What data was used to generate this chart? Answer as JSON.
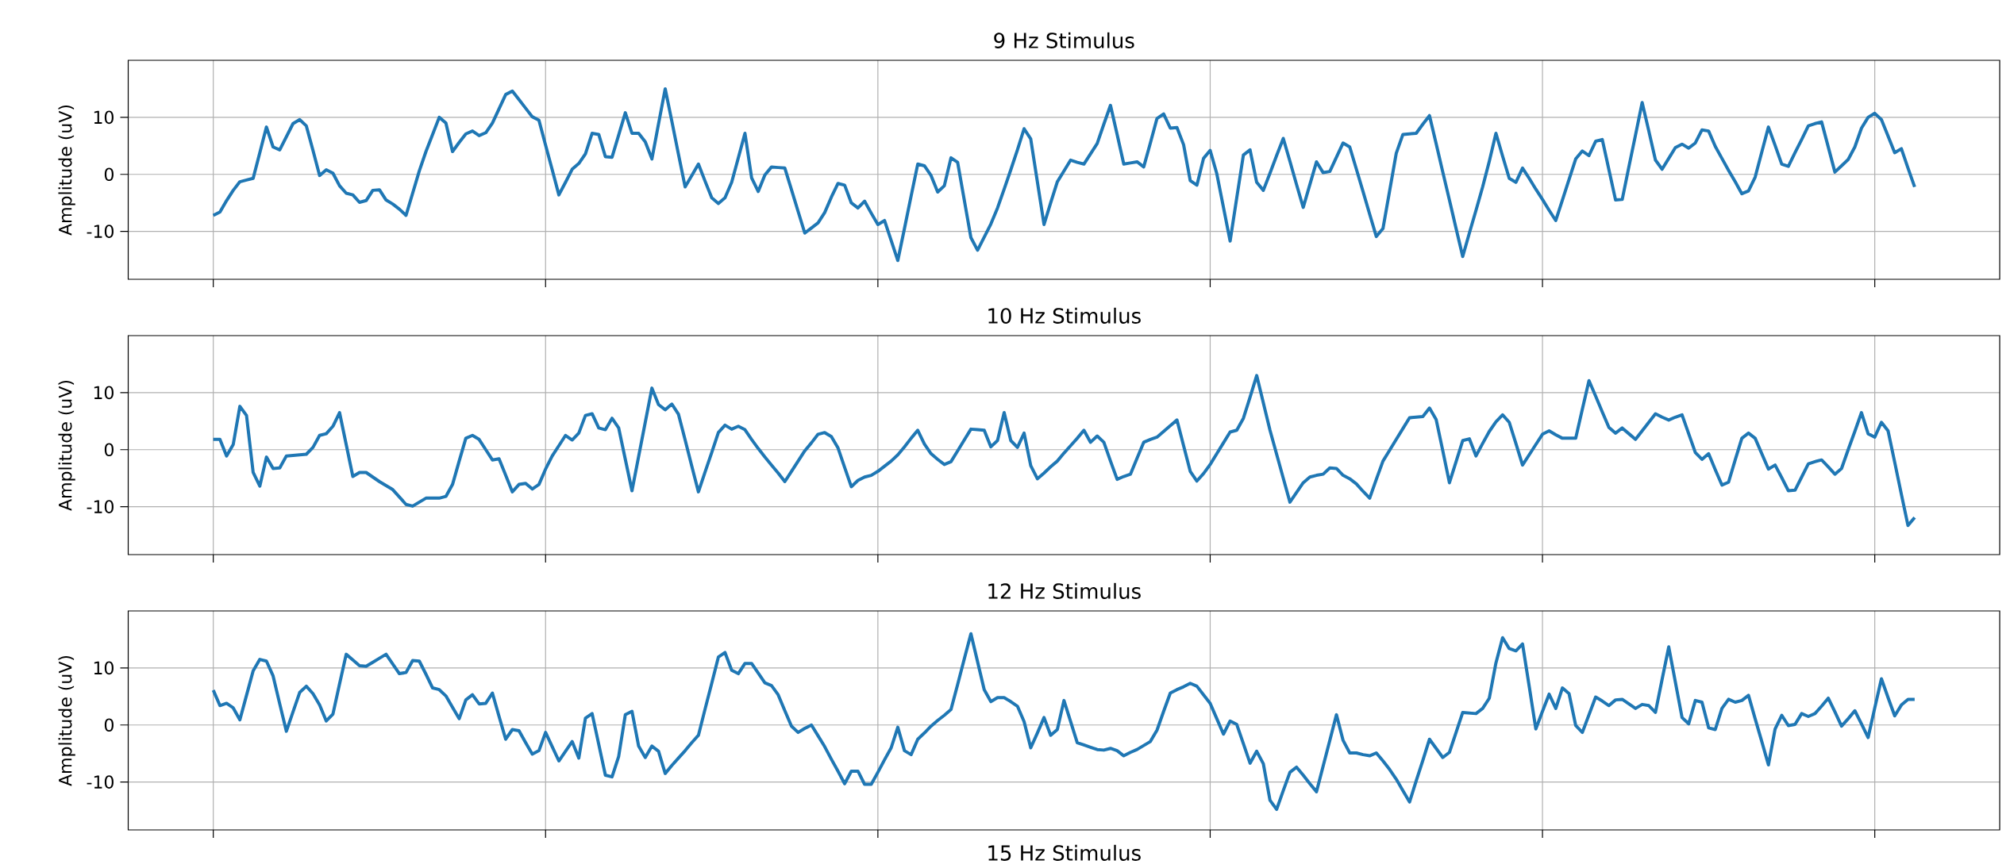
{
  "chart_data": [
    {
      "type": "line",
      "title": "9 Hz Stimulus",
      "ylabel": "Amplitude (uV)",
      "color": "#1f77b4",
      "grid": true,
      "tick_labels": "y",
      "ylim": [
        -18.4,
        20.0
      ],
      "yticks": [
        -10,
        0,
        10
      ],
      "categories": [
        null,
        null,
        null,
        null,
        null,
        null,
        null,
        null,
        null,
        null,
        null,
        null,
        null,
        null,
        null,
        null,
        null,
        null,
        null,
        null,
        null,
        null,
        null,
        null,
        null,
        null,
        null,
        null,
        null,
        null,
        null,
        null,
        null,
        null,
        null,
        null,
        null,
        null,
        null,
        null,
        null,
        null,
        null,
        null,
        null,
        null,
        null,
        null,
        null,
        null,
        null,
        null,
        null,
        null,
        null,
        null,
        null,
        null,
        null,
        null,
        null,
        null,
        null,
        null,
        null,
        null,
        null,
        null,
        null,
        null,
        null,
        null,
        null,
        null,
        null,
        null,
        null,
        null,
        null,
        null,
        null,
        null,
        null,
        null,
        null,
        null,
        null,
        null,
        null,
        null,
        null,
        null,
        null,
        null,
        null,
        null,
        null,
        null,
        null,
        null,
        null,
        null,
        null,
        null,
        null,
        null,
        null,
        null,
        null,
        null,
        null,
        null,
        null,
        null,
        null,
        null,
        null,
        null,
        null,
        null,
        null,
        null,
        null,
        null,
        null,
        null,
        null,
        null,
        null,
        null,
        null,
        null,
        null,
        null,
        null,
        null,
        null,
        null,
        null,
        null,
        null,
        null,
        null,
        null,
        null,
        null,
        null,
        null,
        null,
        null,
        null,
        null,
        null,
        null,
        null,
        null,
        null,
        null,
        null,
        null,
        null,
        null,
        null,
        null,
        null,
        null,
        null,
        null,
        null,
        null,
        null,
        null,
        null,
        null,
        null,
        null,
        null,
        null,
        null,
        null,
        null,
        null,
        null,
        null,
        null,
        null,
        null,
        null,
        null,
        null,
        null,
        null,
        null,
        null,
        null,
        null,
        null,
        null,
        null,
        null,
        null,
        null,
        null,
        null,
        null,
        null,
        null,
        null,
        null,
        null,
        null,
        null,
        null,
        null,
        null,
        null,
        null,
        null,
        null,
        null,
        null,
        null,
        null,
        null,
        null,
        null,
        null,
        null,
        null,
        null,
        null,
        null,
        null,
        null,
        null,
        null,
        null,
        null,
        null,
        null,
        null,
        null,
        null,
        null,
        null,
        null,
        null,
        null,
        null,
        null,
        null,
        null,
        null,
        null,
        null,
        null,
        null
      ],
      "values": [
        -7.2,
        -6.6,
        -4.6,
        -2.8,
        -1.3,
        -1.0,
        -0.7,
        3.8,
        8.3,
        4.8,
        4.3,
        6.6,
        8.9,
        9.6,
        8.5,
        4.2,
        -0.2,
        0.8,
        0.2,
        -2.0,
        -3.3,
        -3.6,
        -4.9,
        -4.6,
        -2.8,
        -2.7,
        -4.5,
        -5.2,
        -6.1,
        -7.2,
        -3.3,
        0.6,
        4.0,
        7.0,
        10.0,
        9.0,
        4.0,
        5.6,
        7.1,
        7.6,
        6.8,
        7.3,
        9.0,
        11.5,
        14.0,
        14.6,
        13.1,
        11.6,
        10.1,
        9.5,
        5.1,
        0.8,
        -3.6,
        -1.4,
        0.9,
        1.9,
        3.6,
        7.2,
        7.0,
        3.1,
        3.0,
        6.9,
        10.8,
        7.2,
        7.2,
        5.7,
        2.7,
        8.9,
        15.0,
        9.3,
        3.5,
        -2.2,
        -0.2,
        1.8,
        -1.2,
        -4.1,
        -5.1,
        -4.1,
        -1.4,
        2.9,
        7.2,
        -0.6,
        -3.0,
        -0.1,
        1.3,
        1.2,
        1.1,
        -2.7,
        -6.5,
        -10.3,
        -9.4,
        -8.5,
        -6.7,
        -4.0,
        -1.6,
        -1.9,
        -5.0,
        -5.9,
        -4.7,
        -6.8,
        -8.8,
        -8.1,
        -11.6,
        -15.1,
        -9.5,
        -3.8,
        1.8,
        1.5,
        -0.2,
        -3.1,
        -2.0,
        2.9,
        2.1,
        -4.5,
        -11.1,
        -13.3,
        -11.0,
        -8.7,
        -5.9,
        -2.6,
        0.8,
        4.3,
        8.0,
        6.2,
        -1.3,
        -8.8,
        -5.0,
        -1.3,
        0.6,
        2.5,
        2.1,
        1.8,
        3.6,
        5.4,
        8.8,
        12.1,
        7.0,
        1.8,
        2.0,
        2.2,
        1.3,
        5.5,
        9.8,
        10.6,
        8.1,
        8.2,
        5.2,
        -1.1,
        -1.9,
        2.8,
        4.2,
        0.1,
        -5.8,
        -11.7,
        -4.1,
        3.4,
        4.3,
        -1.4,
        -2.8,
        0.2,
        3.3,
        6.3,
        2.3,
        -1.8,
        -5.8,
        -1.8,
        2.2,
        0.3,
        0.5,
        3.0,
        5.5,
        4.8,
        0.9,
        -3.0,
        -7.0,
        -10.9,
        -9.5,
        -2.9,
        3.7,
        7.0,
        7.1,
        7.2,
        8.8,
        10.3,
        5.4,
        0.4,
        -4.5,
        -9.5,
        -14.4,
        -10.3,
        -6.3,
        -2.2,
        2.3,
        7.2,
        3.2,
        -0.7,
        -1.4,
        1.1,
        -0.7,
        -2.6,
        -4.4,
        -6.3,
        -8.1,
        -4.5,
        -0.9,
        2.7,
        4.1,
        3.3,
        5.8,
        6.1,
        0.8,
        -4.5,
        -4.4,
        1.3,
        6.9,
        12.6,
        7.6,
        2.5,
        0.9,
        2.8,
        4.7,
        5.3,
        4.6,
        5.5,
        7.8,
        7.6,
        4.9,
        2.8,
        0.7,
        -1.3,
        -3.4,
        -2.9,
        -0.5,
        3.9,
        8.3,
        5.1,
        1.8,
        1.4,
        3.8,
        6.1,
        8.5,
        8.9,
        9.2,
        4.8,
        0.4,
        1.5,
        2.6,
        4.8,
        8.1,
        10.0,
        10.7,
        9.6,
        6.7,
        3.8,
        4.5,
        1.1,
        -2.2
      ]
    },
    {
      "type": "line",
      "title": "10 Hz Stimulus",
      "ylabel": "Amplitude (uV)",
      "color": "#1f77b4",
      "grid": true,
      "tick_labels": "y",
      "ylim": [
        -18.4,
        20.0
      ],
      "yticks": [
        -10,
        0,
        10
      ],
      "categories": [
        null,
        null,
        null,
        null,
        null,
        null,
        null,
        null,
        null,
        null,
        null,
        null,
        null,
        null,
        null,
        null,
        null,
        null,
        null,
        null,
        null,
        null,
        null,
        null,
        null,
        null,
        null,
        null,
        null,
        null,
        null,
        null,
        null,
        null,
        null,
        null,
        null,
        null,
        null,
        null,
        null,
        null,
        null,
        null,
        null,
        null,
        null,
        null,
        null,
        null,
        null,
        null,
        null,
        null,
        null,
        null,
        null,
        null,
        null,
        null,
        null,
        null,
        null,
        null,
        null,
        null,
        null,
        null,
        null,
        null,
        null,
        null,
        null,
        null,
        null,
        null,
        null,
        null,
        null,
        null,
        null,
        null,
        null,
        null,
        null,
        null,
        null,
        null,
        null,
        null,
        null,
        null,
        null,
        null,
        null,
        null,
        null,
        null,
        null,
        null,
        null,
        null,
        null,
        null,
        null,
        null,
        null,
        null,
        null,
        null,
        null,
        null,
        null,
        null,
        null,
        null,
        null,
        null,
        null,
        null,
        null,
        null,
        null,
        null,
        null,
        null,
        null,
        null,
        null,
        null,
        null,
        null,
        null,
        null,
        null,
        null,
        null,
        null,
        null,
        null,
        null,
        null,
        null,
        null,
        null,
        null,
        null,
        null,
        null,
        null,
        null,
        null,
        null,
        null,
        null,
        null,
        null,
        null,
        null,
        null,
        null,
        null,
        null,
        null,
        null,
        null,
        null,
        null,
        null,
        null,
        null,
        null,
        null,
        null,
        null,
        null,
        null,
        null,
        null,
        null,
        null,
        null,
        null,
        null,
        null,
        null,
        null,
        null,
        null,
        null,
        null,
        null,
        null,
        null,
        null,
        null,
        null,
        null,
        null,
        null,
        null,
        null,
        null,
        null,
        null,
        null,
        null,
        null,
        null,
        null,
        null,
        null,
        null,
        null,
        null,
        null,
        null,
        null,
        null,
        null,
        null,
        null,
        null,
        null,
        null,
        null,
        null,
        null,
        null,
        null,
        null,
        null,
        null,
        null,
        null,
        null,
        null,
        null,
        null,
        null,
        null,
        null,
        null,
        null,
        null,
        null,
        null,
        null,
        null,
        null,
        null,
        null,
        null,
        null,
        null,
        null,
        null
      ],
      "values": [
        1.8,
        1.8,
        -1.1,
        0.9,
        7.6,
        6.0,
        -4.0,
        -6.4,
        -1.3,
        -3.3,
        -3.2,
        -1.1,
        -1.0,
        -0.9,
        -0.8,
        0.4,
        2.5,
        2.8,
        4.1,
        6.5,
        0.9,
        -4.7,
        -4.0,
        -4.0,
        -4.8,
        -5.6,
        -6.3,
        -7.0,
        -8.3,
        -9.6,
        -9.9,
        -9.2,
        -8.5,
        -8.5,
        -8.5,
        -8.2,
        -6.1,
        -2.0,
        2.0,
        2.5,
        1.8,
        0.0,
        -1.8,
        -1.6,
        -4.5,
        -7.4,
        -6.1,
        -5.9,
        -6.9,
        -6.1,
        -3.4,
        -1.1,
        0.7,
        2.5,
        1.7,
        2.9,
        6.0,
        6.3,
        3.8,
        3.5,
        5.5,
        3.8,
        -1.7,
        -7.2,
        -1.2,
        4.8,
        10.8,
        7.9,
        7.0,
        8.0,
        6.2,
        1.7,
        -2.9,
        -7.4,
        -3.9,
        -0.5,
        3.0,
        4.3,
        3.6,
        4.1,
        3.5,
        1.8,
        0.2,
        -1.3,
        -2.7,
        -4.1,
        -5.6,
        -3.8,
        -2.0,
        -0.2,
        1.2,
        2.7,
        3.0,
        2.3,
        0.3,
        -3.1,
        -6.5,
        -5.4,
        -4.8,
        -4.5,
        -3.8,
        -2.9,
        -2.0,
        -0.9,
        0.5,
        2.0,
        3.4,
        1.0,
        -0.7,
        -1.7,
        -2.6,
        -2.1,
        -0.2,
        1.7,
        3.6,
        3.5,
        3.4,
        0.5,
        1.6,
        6.5,
        1.6,
        0.4,
        2.9,
        -2.8,
        -5.1,
        -4.1,
        -3.0,
        -2.0,
        -0.6,
        0.7,
        2.0,
        3.4,
        1.3,
        2.4,
        1.3,
        -2.0,
        -5.2,
        -4.7,
        -4.3,
        -1.5,
        1.3,
        1.8,
        2.2,
        3.2,
        4.2,
        5.2,
        0.7,
        -3.8,
        -5.5,
        -4.2,
        -2.6,
        -0.7,
        1.2,
        3.1,
        3.4,
        5.5,
        9.2,
        13.0,
        8.2,
        3.4,
        -0.8,
        -5.0,
        -9.2,
        -7.5,
        -5.8,
        -4.8,
        -4.5,
        -4.3,
        -3.2,
        -3.3,
        -4.5,
        -5.1,
        -6.0,
        -7.3,
        -8.5,
        -5.2,
        -2.0,
        -0.1,
        1.8,
        3.7,
        5.6,
        5.7,
        5.8,
        7.3,
        5.3,
        -0.2,
        -5.8,
        -2.1,
        1.6,
        1.9,
        -1.1,
        1.1,
        3.2,
        4.9,
        6.1,
        4.8,
        1.1,
        -2.7,
        -0.9,
        0.9,
        2.7,
        3.3,
        2.6,
        2.0,
        2.0,
        2.0,
        7.1,
        12.1,
        9.4,
        6.6,
        3.9,
        2.9,
        3.8,
        2.8,
        1.8,
        3.3,
        4.8,
        6.3,
        5.7,
        5.2,
        5.7,
        6.1,
        2.8,
        -0.5,
        -1.7,
        -0.7,
        -3.5,
        -6.2,
        -5.7,
        -1.8,
        2.0,
        2.9,
        2.0,
        -0.7,
        -3.4,
        -2.7,
        -4.9,
        -7.2,
        -7.1,
        -4.8,
        -2.5,
        -2.1,
        -1.8,
        -3.0,
        -4.3,
        -3.3,
        0.0,
        3.2,
        6.5,
        2.8,
        2.2,
        4.8,
        3.3,
        -2.2,
        -7.8,
        -13.3,
        -11.9
      ]
    },
    {
      "type": "line",
      "title": "12 Hz Stimulus",
      "ylabel": "Amplitude (uV)",
      "color": "#1f77b4",
      "grid": true,
      "tick_labels": "y",
      "ylim": [
        -18.4,
        20.0
      ],
      "yticks": [
        -10,
        0,
        10
      ],
      "categories": [
        null,
        null,
        null,
        null,
        null,
        null,
        null,
        null,
        null,
        null,
        null,
        null,
        null,
        null,
        null,
        null,
        null,
        null,
        null,
        null,
        null,
        null,
        null,
        null,
        null,
        null,
        null,
        null,
        null,
        null,
        null,
        null,
        null,
        null,
        null,
        null,
        null,
        null,
        null,
        null,
        null,
        null,
        null,
        null,
        null,
        null,
        null,
        null,
        null,
        null,
        null,
        null,
        null,
        null,
        null,
        null,
        null,
        null,
        null,
        null,
        null,
        null,
        null,
        null,
        null,
        null,
        null,
        null,
        null,
        null,
        null,
        null,
        null,
        null,
        null,
        null,
        null,
        null,
        null,
        null,
        null,
        null,
        null,
        null,
        null,
        null,
        null,
        null,
        null,
        null,
        null,
        null,
        null,
        null,
        null,
        null,
        null,
        null,
        null,
        null,
        null,
        null,
        null,
        null,
        null,
        null,
        null,
        null,
        null,
        null,
        null,
        null,
        null,
        null,
        null,
        null,
        null,
        null,
        null,
        null,
        null,
        null,
        null,
        null,
        null,
        null,
        null,
        null,
        null,
        null,
        null,
        null,
        null,
        null,
        null,
        null,
        null,
        null,
        null,
        null,
        null,
        null,
        null,
        null,
        null,
        null,
        null,
        null,
        null,
        null,
        null,
        null,
        null,
        null,
        null,
        null,
        null,
        null,
        null,
        null,
        null,
        null,
        null,
        null,
        null,
        null,
        null,
        null,
        null,
        null,
        null,
        null,
        null,
        null,
        null,
        null,
        null,
        null,
        null,
        null,
        null,
        null,
        null,
        null,
        null,
        null,
        null,
        null,
        null,
        null,
        null,
        null,
        null,
        null,
        null,
        null,
        null,
        null,
        null,
        null,
        null,
        null,
        null,
        null,
        null,
        null,
        null,
        null,
        null,
        null,
        null,
        null,
        null,
        null,
        null,
        null,
        null,
        null,
        null,
        null,
        null,
        null,
        null,
        null,
        null,
        null,
        null,
        null,
        null,
        null,
        null,
        null,
        null,
        null,
        null,
        null,
        null,
        null,
        null,
        null,
        null,
        null,
        null,
        null,
        null,
        null,
        null,
        null,
        null,
        null,
        null,
        null,
        null,
        null,
        null,
        null,
        null
      ],
      "values": [
        6.1,
        3.4,
        3.8,
        3.0,
        0.9,
        5.2,
        9.5,
        11.5,
        11.2,
        8.6,
        3.7,
        -1.1,
        2.3,
        5.7,
        6.8,
        5.5,
        3.5,
        0.7,
        1.9,
        7.2,
        12.4,
        11.4,
        10.4,
        10.3,
        11.0,
        11.7,
        12.4,
        10.7,
        9.0,
        9.2,
        11.3,
        11.2,
        8.9,
        6.5,
        6.2,
        5.1,
        3.1,
        1.1,
        4.4,
        5.3,
        3.7,
        3.8,
        5.6,
        1.5,
        -2.5,
        -0.8,
        -1.0,
        -3.1,
        -5.1,
        -4.5,
        -1.3,
        -3.8,
        -6.3,
        -4.6,
        -2.9,
        -5.8,
        1.2,
        2.0,
        -3.4,
        -8.8,
        -9.1,
        -5.5,
        1.8,
        2.4,
        -3.7,
        -5.7,
        -3.7,
        -4.6,
        -8.5,
        -7.1,
        -5.8,
        -4.5,
        -3.1,
        -1.8,
        2.8,
        7.3,
        11.9,
        12.7,
        9.6,
        9.0,
        10.8,
        10.8,
        9.1,
        7.4,
        6.9,
        5.3,
        2.5,
        -0.2,
        -1.3,
        -0.6,
        0.0,
        -1.9,
        -3.8,
        -6.0,
        -8.1,
        -10.3,
        -8.1,
        -8.1,
        -10.4,
        -10.4,
        -8.3,
        -6.1,
        -4.0,
        -0.4,
        -4.5,
        -5.2,
        -2.5,
        -1.4,
        -0.2,
        0.8,
        1.7,
        2.7,
        7.1,
        11.6,
        16.0,
        11.1,
        6.2,
        4.1,
        4.8,
        4.8,
        4.1,
        3.3,
        0.6,
        -4.0,
        -1.4,
        1.3,
        -1.8,
        -0.8,
        4.3,
        0.6,
        -3.1,
        -3.5,
        -3.9,
        -4.3,
        -4.4,
        -4.1,
        -4.5,
        -5.4,
        -4.8,
        -4.3,
        -3.6,
        -2.9,
        -0.9,
        2.4,
        5.6,
        6.2,
        6.7,
        7.3,
        6.8,
        5.3,
        3.8,
        1.1,
        -1.6,
        0.7,
        0.1,
        -3.3,
        -6.7,
        -4.6,
        -6.8,
        -13.2,
        -14.8,
        -11.5,
        -8.3,
        -7.4,
        -8.8,
        -10.3,
        -11.7,
        -7.2,
        -2.7,
        1.8,
        -2.7,
        -4.9,
        -4.9,
        -5.2,
        -5.4,
        -4.9,
        -6.3,
        -7.8,
        -9.5,
        -11.5,
        -13.5,
        -9.8,
        -6.2,
        -2.5,
        -4.1,
        -5.7,
        -4.8,
        -1.3,
        2.2,
        2.1,
        2.0,
        2.9,
        4.7,
        10.9,
        15.3,
        13.4,
        13.0,
        14.2,
        6.8,
        -0.7,
        2.4,
        5.4,
        2.9,
        6.5,
        5.5,
        -0.1,
        -1.3,
        1.8,
        4.9,
        4.2,
        3.4,
        4.4,
        4.5,
        3.7,
        2.9,
        3.6,
        3.4,
        2.2,
        8.0,
        13.7,
        7.5,
        1.3,
        0.2,
        4.3,
        4.0,
        -0.5,
        -0.8,
        2.9,
        4.5,
        4.0,
        4.3,
        5.2,
        1.1,
        -2.9,
        -7.0,
        -0.7,
        1.7,
        -0.1,
        0.1,
        2.0,
        1.5,
        2.0,
        3.3,
        4.7,
        2.3,
        -0.2,
        1.1,
        2.5,
        0.2,
        -2.2,
        3.0,
        8.1,
        4.8,
        1.6,
        3.5,
        4.5,
        4.5
      ]
    },
    {
      "type": "other",
      "title": "15 Hz Stimulus"
    }
  ]
}
